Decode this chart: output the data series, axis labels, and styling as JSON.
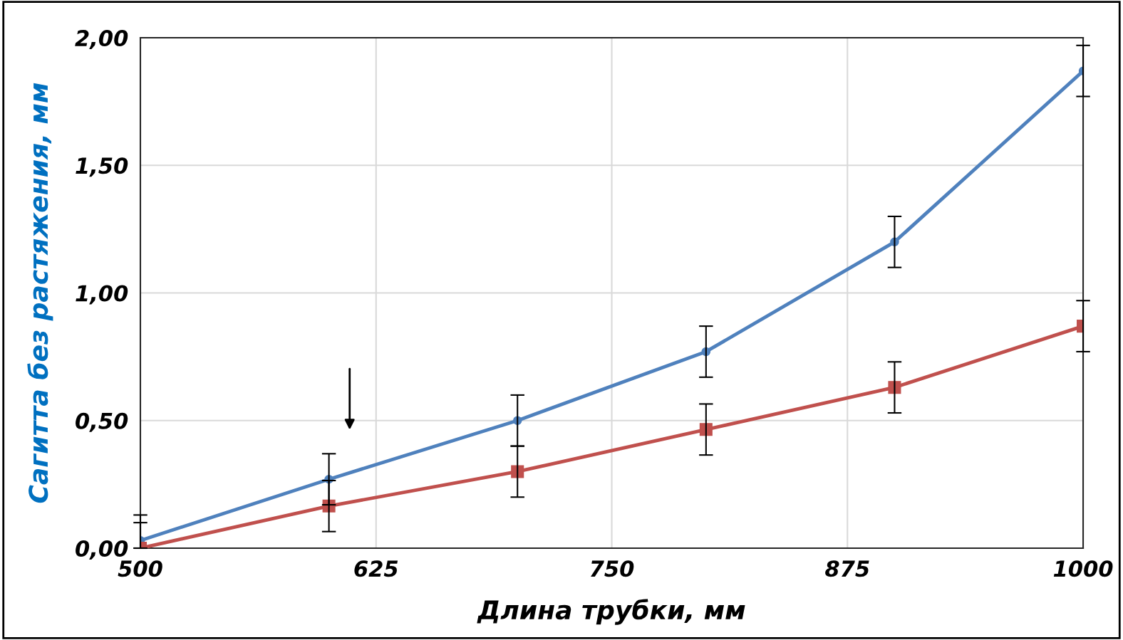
{
  "chart_data": {
    "type": "line",
    "xlabel": "Длина трубки, мм",
    "ylabel": "Сагитта без растяжения, мм",
    "x": [
      500,
      600,
      700,
      800,
      900,
      1000
    ],
    "series": [
      {
        "color": "#4f81bd",
        "marker": "circle",
        "values": [
          0.03,
          0.27,
          0.5,
          0.77,
          1.2,
          1.87
        ],
        "errors": [
          [
            0,
            0.13
          ],
          0.1,
          0.1,
          0.1,
          0.1,
          0.1
        ]
      },
      {
        "color": "#c0504d",
        "marker": "square",
        "values": [
          0.0,
          0.165,
          0.3,
          0.465,
          0.63,
          0.87
        ],
        "errors": [
          [
            0,
            0.1
          ],
          0.1,
          0.1,
          0.1,
          0.1,
          0.1
        ]
      }
    ],
    "xlim": [
      500,
      1000
    ],
    "xticks": [
      500,
      625,
      750,
      875,
      1000
    ],
    "ylim": [
      0,
      2
    ],
    "yticks": [
      {
        "value": 0,
        "label": "0,00"
      },
      {
        "value": 0.5,
        "label": "0,50"
      },
      {
        "value": 1,
        "label": "1,00"
      },
      {
        "value": 1.5,
        "label": "1,50"
      },
      {
        "value": 2,
        "label": "2,00"
      }
    ],
    "grid": true,
    "line_style": "solid"
  }
}
